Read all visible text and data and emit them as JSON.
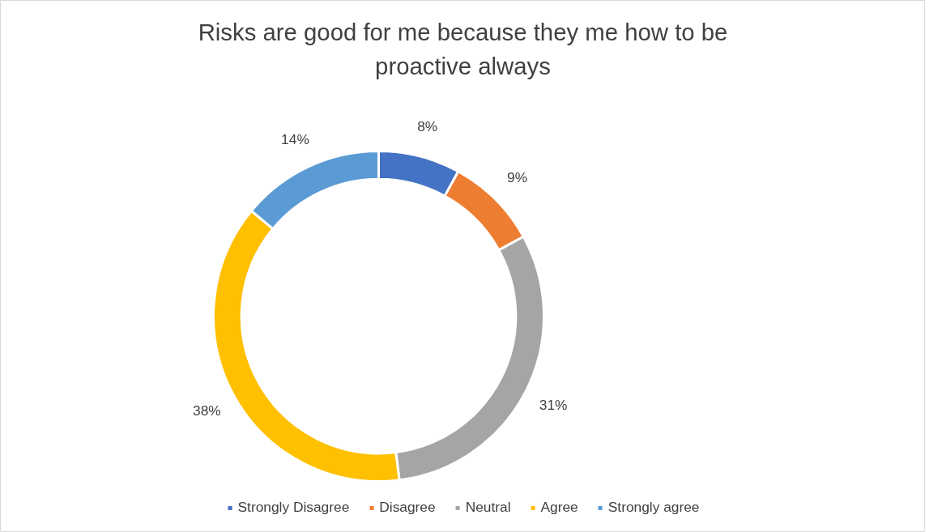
{
  "chart_data": {
    "type": "donut",
    "title": "Risks are good for me because they me how to be proactive always",
    "categories": [
      "Strongly Disagree",
      "Disagree",
      "Neutral",
      "Agree",
      "Strongly agree"
    ],
    "values": [
      8,
      9,
      31,
      38,
      14
    ],
    "value_labels": [
      "8%",
      "9%",
      "31%",
      "38%",
      "14%"
    ],
    "colors": [
      "#4472c4",
      "#ed7d31",
      "#a5a5a5",
      "#ffc000",
      "#5b9bd5"
    ],
    "legend": "bottom"
  }
}
